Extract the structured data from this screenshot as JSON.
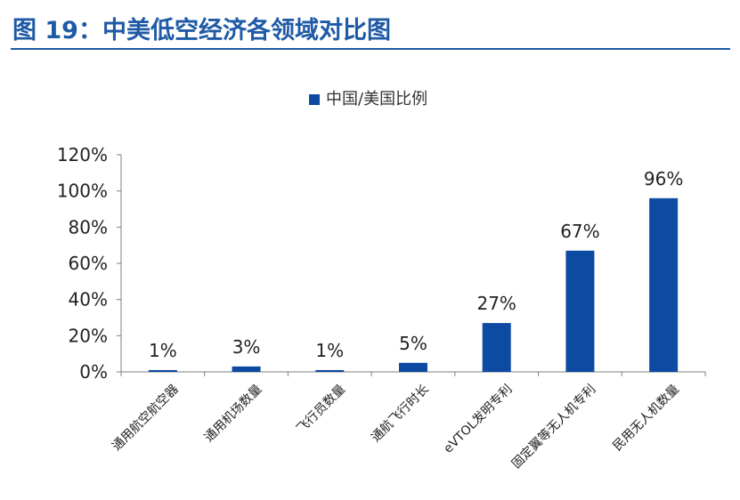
{
  "title": "图 19：中美低空经济各领域对比图",
  "colors": {
    "title": "#1f5aa6",
    "bar": "#0d4aa2",
    "axis": "#7f7f7f",
    "text": "#222222"
  },
  "chart_data": {
    "type": "bar",
    "categories": [
      "通用航空航空器",
      "通用机场数量",
      "飞行员数量",
      "通航飞行时长",
      "eVTOL发明专利",
      "固定翼等无人机专利",
      "民用无人机数量"
    ],
    "series": [
      {
        "name": "中国/美国比例",
        "values": [
          1,
          3,
          1,
          5,
          27,
          67,
          96
        ]
      }
    ],
    "data_labels": [
      "1%",
      "3%",
      "1%",
      "5%",
      "27%",
      "67%",
      "96%"
    ],
    "yticks": [
      "0%",
      "20%",
      "40%",
      "60%",
      "80%",
      "100%",
      "120%"
    ],
    "ylim": [
      0,
      120
    ],
    "legend_position": "top-center",
    "grid": false
  }
}
